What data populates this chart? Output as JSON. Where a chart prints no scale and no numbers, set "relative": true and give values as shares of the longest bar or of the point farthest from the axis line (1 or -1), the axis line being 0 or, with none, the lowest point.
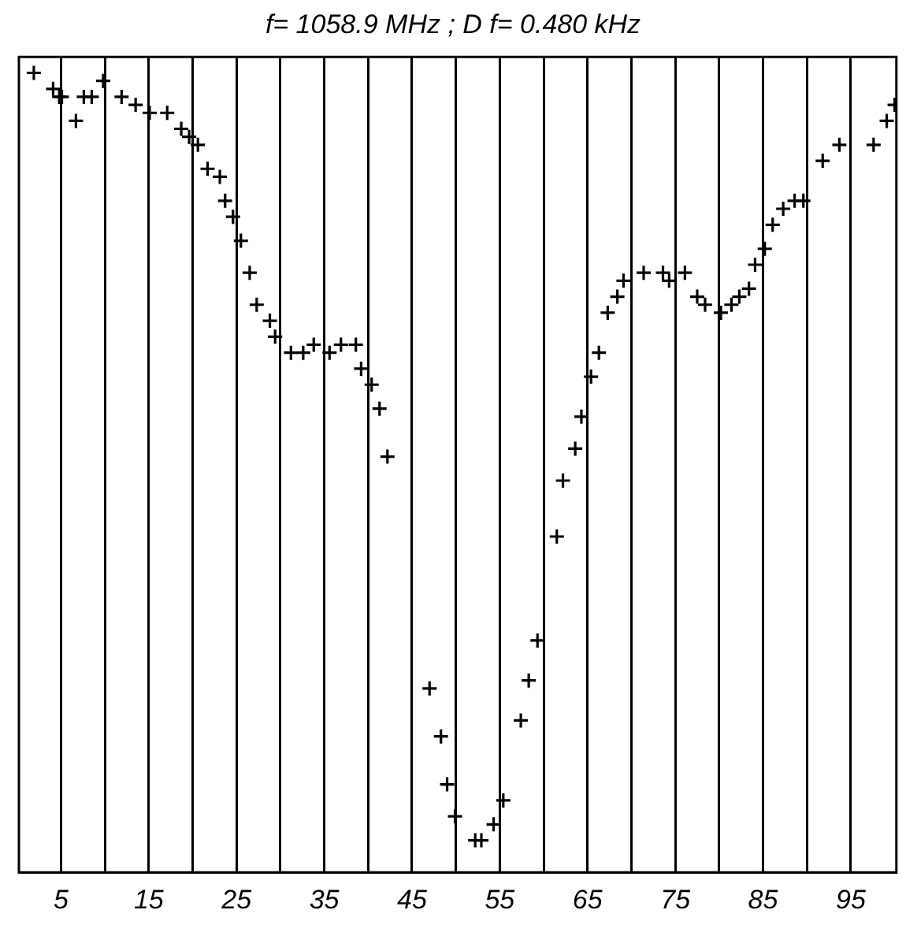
{
  "chart_data": {
    "type": "scatter",
    "title": "f= 1058.9 MHz ; D f= 0.480 kHz",
    "relative": true,
    "marker": "cross",
    "grid": "x",
    "tick_labels": "x",
    "xlim": [
      0.2,
      100.2
    ],
    "xticks": [
      5,
      {
        "value": 10,
        "label": null
      },
      15,
      {
        "value": 20,
        "label": null
      },
      25,
      {
        "value": 30,
        "label": null
      },
      35,
      {
        "value": 40,
        "label": null
      },
      45,
      {
        "value": 50,
        "label": null
      },
      55,
      {
        "value": 60,
        "label": null
      },
      65,
      {
        "value": 70,
        "label": null
      },
      75,
      {
        "value": 80,
        "label": null
      },
      85,
      {
        "value": 90,
        "label": null
      },
      95
    ],
    "series": [
      {
        "color": "#000000",
        "x": [
          1.9,
          4.1,
          4.8,
          5.1,
          6.7,
          7.6,
          8.5,
          9.8,
          11.9,
          13.5,
          15.1,
          17.1,
          18.7,
          19.6,
          20.6,
          21.7,
          23.1,
          23.7,
          24.6,
          25.5,
          26.5,
          27.3,
          28.8,
          29.4,
          31.2,
          32.6,
          33.8,
          35.6,
          36.9,
          38.6,
          39.2,
          40.4,
          41.3,
          42.2,
          47.0,
          48.3,
          49.0,
          49.9,
          52.2,
          52.9,
          54.3,
          55.4,
          57.4,
          58.3,
          59.3,
          61.5,
          62.2,
          63.6,
          64.3,
          65.4,
          66.3,
          67.3,
          68.4,
          69.1,
          71.4,
          73.6,
          74.3,
          76.1,
          77.5,
          78.4,
          80.2,
          81.4,
          82.3,
          83.4,
          84.1,
          85.2,
          86.1,
          87.3,
          88.6,
          89.6,
          91.8,
          93.7,
          97.6,
          99.1,
          100.0
        ],
        "values": [
          1.0,
          0.98,
          0.97,
          0.97,
          0.94,
          0.97,
          0.97,
          0.99,
          0.97,
          0.96,
          0.95,
          0.95,
          0.93,
          0.92,
          0.91,
          0.88,
          0.87,
          0.84,
          0.82,
          0.79,
          0.75,
          0.71,
          0.69,
          0.67,
          0.65,
          0.65,
          0.66,
          0.65,
          0.66,
          0.66,
          0.63,
          0.61,
          0.58,
          0.52,
          0.23,
          0.17,
          0.11,
          0.07,
          0.04,
          0.04,
          0.06,
          0.09,
          0.19,
          0.24,
          0.29,
          0.42,
          0.49,
          0.53,
          0.57,
          0.62,
          0.65,
          0.7,
          0.72,
          0.74,
          0.75,
          0.75,
          0.74,
          0.75,
          0.72,
          0.71,
          0.7,
          0.71,
          0.72,
          0.73,
          0.76,
          0.78,
          0.81,
          0.83,
          0.84,
          0.84,
          0.89,
          0.91,
          0.91,
          0.94,
          0.96
        ]
      }
    ]
  }
}
